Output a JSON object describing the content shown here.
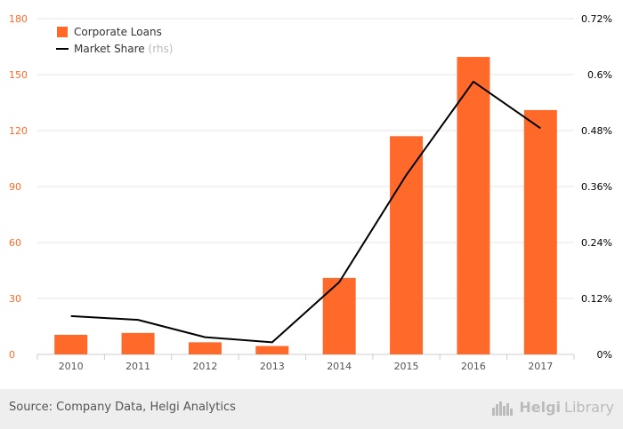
{
  "chart_data": {
    "type": "bar+line",
    "categories": [
      "2010",
      "2011",
      "2012",
      "2013",
      "2014",
      "2015",
      "2016",
      "2017"
    ],
    "series": [
      {
        "name": "Corporate Loans",
        "type": "bar",
        "axis": "left",
        "values": [
          10.5,
          11.5,
          6.5,
          4.5,
          41,
          117,
          159.5,
          131
        ]
      },
      {
        "name": "Market Share",
        "legend_suffix": "(rhs)",
        "type": "line",
        "axis": "right",
        "values": [
          0.082,
          0.074,
          0.037,
          0.026,
          0.155,
          0.385,
          0.585,
          0.485
        ]
      }
    ],
    "y_left": {
      "range": [
        0,
        180
      ],
      "ticks": [
        0,
        30,
        60,
        90,
        120,
        150,
        180
      ],
      "tick_labels": [
        "0",
        "30",
        "60",
        "90",
        "120",
        "150",
        "180"
      ]
    },
    "y_right": {
      "range": [
        0,
        0.72
      ],
      "ticks": [
        0,
        0.12,
        0.24,
        0.36,
        0.48,
        0.6,
        0.72
      ],
      "tick_labels": [
        "0%",
        "0.12%",
        "0.24%",
        "0.36%",
        "0.48%",
        "0.6%",
        "0.72%"
      ]
    },
    "title": "",
    "xlabel": "",
    "ylabel": "",
    "grid": true,
    "legend_position": "top-left",
    "colors": {
      "bar": "#ff6a2b",
      "line": "#000000",
      "left_axis_text": "#ff6a2b",
      "right_axis_text": "#000000",
      "grid": "#e6e6e6"
    }
  },
  "footer": {
    "source": "Source: Company Data, Helgi Analytics",
    "brand_part1": "Helgi",
    "brand_part2": "Library",
    "brand_icon": "city-skyline-icon"
  }
}
